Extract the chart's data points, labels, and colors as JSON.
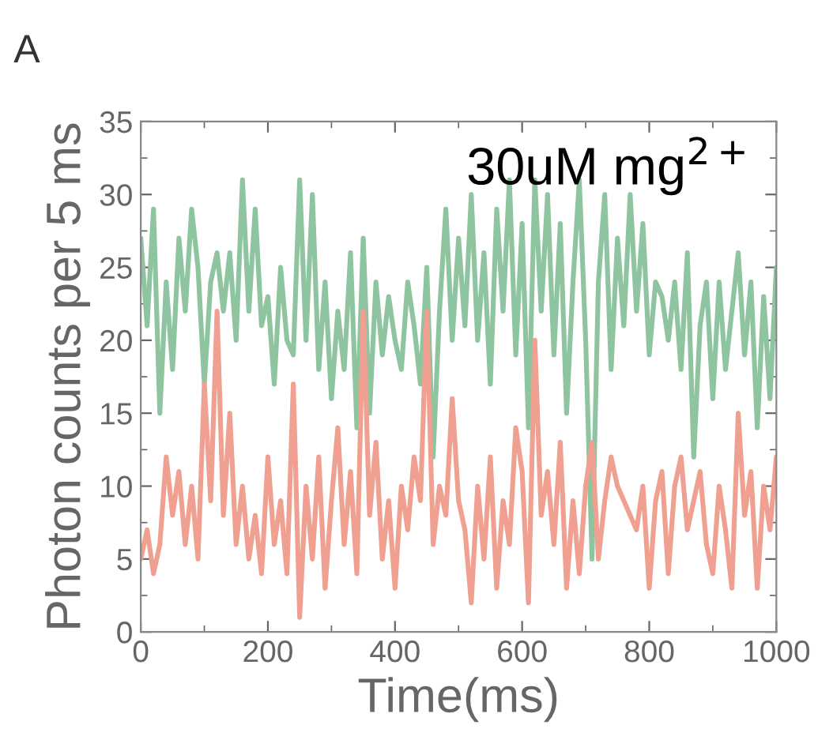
{
  "chart_data": {
    "type": "line",
    "title": "A",
    "xlabel": "Time(ms)",
    "ylabel": "Photon counts per 5 ms",
    "annotations": [
      "30uM mg$^{2+}$"
    ],
    "x": [
      0,
      10,
      20,
      30,
      40,
      50,
      60,
      70,
      80,
      90,
      100,
      110,
      120,
      130,
      140,
      150,
      160,
      170,
      180,
      190,
      200,
      210,
      220,
      230,
      240,
      250,
      260,
      270,
      280,
      290,
      300,
      310,
      320,
      330,
      340,
      350,
      360,
      370,
      380,
      390,
      400,
      410,
      420,
      430,
      440,
      450,
      460,
      470,
      480,
      490,
      500,
      510,
      520,
      530,
      540,
      550,
      560,
      570,
      580,
      590,
      600,
      610,
      620,
      630,
      640,
      650,
      660,
      670,
      680,
      690,
      700,
      710,
      720,
      730,
      740,
      750,
      760,
      770,
      780,
      790,
      800,
      810,
      820,
      830,
      840,
      850,
      860,
      870,
      880,
      890,
      900,
      910,
      920,
      930,
      940,
      950,
      960,
      970,
      980,
      990,
      1000
    ],
    "series": [
      {
        "color": "#8fc4a0",
        "values": [
          27,
          21,
          29,
          15,
          24,
          18,
          27,
          22,
          29,
          25,
          17,
          24,
          26,
          22,
          26,
          20,
          31,
          22,
          29,
          21,
          23,
          17,
          25,
          20,
          19,
          31,
          20,
          30,
          18,
          24,
          16,
          22,
          18,
          26,
          14,
          27,
          15,
          24,
          19,
          23,
          20,
          18,
          24,
          21,
          17,
          25,
          12,
          22,
          29,
          20,
          27,
          21,
          30,
          20,
          26,
          17,
          29,
          22,
          31,
          19,
          28,
          14,
          31,
          22,
          30,
          19,
          28,
          15,
          24,
          31,
          20,
          5,
          24,
          30,
          18,
          27,
          21,
          30,
          22,
          28,
          19,
          24,
          23,
          20,
          24,
          18,
          26,
          12,
          21,
          24,
          16,
          24,
          18,
          22,
          26,
          19,
          24,
          14,
          23,
          16,
          25
        ]
      },
      {
        "color": "#f0a090",
        "values": [
          5,
          7,
          4,
          6,
          12,
          8,
          11,
          6,
          10,
          5,
          17,
          9,
          22,
          8,
          15,
          6,
          10,
          5,
          8,
          4,
          12,
          6,
          9,
          4,
          17,
          1,
          10,
          5,
          12,
          3,
          9,
          14,
          6,
          11,
          4,
          22,
          8,
          13,
          5,
          9,
          3,
          10,
          7,
          12,
          9,
          22,
          6,
          10,
          8,
          16,
          9,
          7,
          2,
          10,
          5,
          12,
          3,
          9,
          6,
          14,
          11,
          2,
          20,
          8,
          11,
          6,
          13,
          3,
          9,
          4,
          10,
          13,
          5,
          9,
          12,
          10,
          9,
          8,
          7,
          10,
          3,
          9,
          11,
          4,
          10,
          12,
          7,
          9,
          11,
          6,
          4,
          10,
          7,
          3,
          15,
          8,
          11,
          3,
          10,
          7,
          12
        ]
      }
    ],
    "xlim": [
      0,
      1000
    ],
    "xticks": [
      0,
      200,
      400,
      600,
      800,
      1000
    ],
    "ylim": [
      0,
      35
    ],
    "yticks": [
      0,
      5,
      10,
      15,
      20,
      25,
      30,
      35
    ],
    "grid": false,
    "legend": false,
    "marker": "none",
    "line_style": "solid"
  }
}
